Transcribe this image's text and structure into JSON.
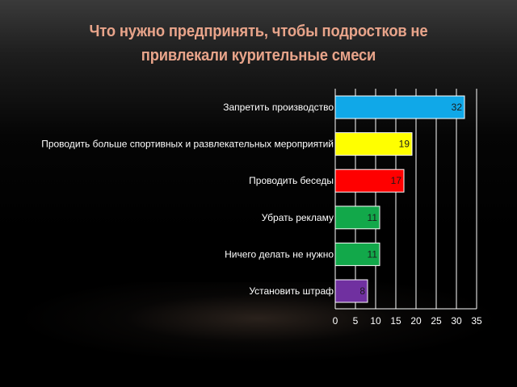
{
  "slide": {
    "title": "Что нужно предпринять, чтобы подростков не привлекали курительные смеси"
  },
  "chart_data": {
    "type": "bar",
    "orientation": "horizontal",
    "categories": [
      "Запретить производство",
      "Проводить больше спортивных и развлекательных мероприятий",
      "Проводить беседы",
      "Убрать рекламу",
      "Ничего делать не нужно",
      "Установить штраф"
    ],
    "values": [
      32,
      19,
      17,
      11,
      11,
      8
    ],
    "colors": [
      "#10a8e8",
      "#ffff00",
      "#ff0000",
      "#12a84a",
      "#12a84a",
      "#7030a0"
    ],
    "xlim": [
      0,
      35
    ],
    "xticks": [
      0,
      5,
      10,
      15,
      20,
      25,
      30,
      35
    ],
    "grid": true,
    "data_labels": true
  }
}
